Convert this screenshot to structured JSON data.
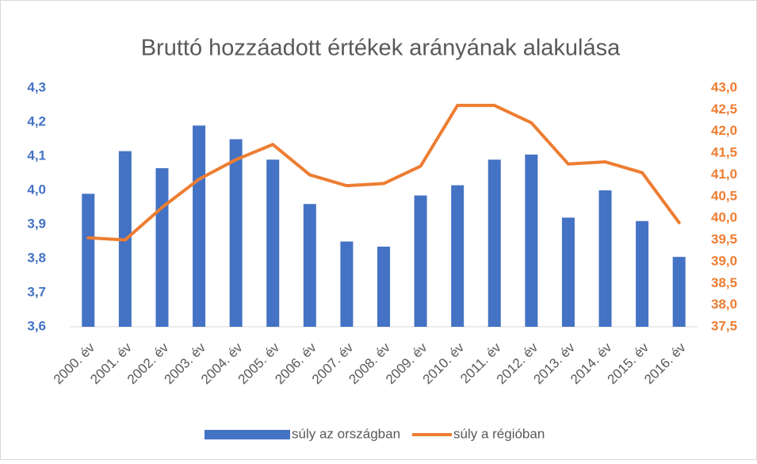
{
  "chart_data": {
    "type": "bar-line",
    "title": "Bruttó hozzáadott értékek arányának alakulása",
    "categories": [
      "2000. év",
      "2001. év",
      "2002. év",
      "2003. év",
      "2004. év",
      "2005. év",
      "2006. év",
      "2007. év",
      "2008. év",
      "2009. év",
      "2010. év",
      "2011. év",
      "2012. év",
      "2013. év",
      "2014. év",
      "2015. év",
      "2016. év"
    ],
    "series": [
      {
        "name": "súly az országban",
        "type": "bar",
        "color": "#4472c4",
        "axis": "y",
        "values": [
          3.99,
          4.115,
          4.065,
          4.19,
          4.15,
          4.09,
          3.96,
          3.85,
          3.835,
          3.985,
          4.015,
          4.09,
          4.105,
          3.92,
          4.0,
          3.91,
          3.805
        ]
      },
      {
        "name": "súly a régióban",
        "type": "line",
        "color": "#ed7d31",
        "axis": "y2",
        "values": [
          39.55,
          39.5,
          40.25,
          40.9,
          41.35,
          41.7,
          41.0,
          40.75,
          40.8,
          41.2,
          42.6,
          42.6,
          42.2,
          41.25,
          41.3,
          41.05,
          39.9
        ]
      }
    ],
    "ylim": [
      3.6,
      4.3
    ],
    "yticks": [
      {
        "value": 3.6,
        "label": "3,6"
      },
      {
        "value": 3.7,
        "label": "3,7"
      },
      {
        "value": 3.8,
        "label": "3,8"
      },
      {
        "value": 3.9,
        "label": "3,9"
      },
      {
        "value": 4.0,
        "label": "4,0"
      },
      {
        "value": 4.1,
        "label": "4,1"
      },
      {
        "value": 4.2,
        "label": "4,2"
      },
      {
        "value": 4.3,
        "label": "4,3"
      }
    ],
    "y2lim": [
      37.5,
      43.0
    ],
    "y2ticks": [
      {
        "value": 37.5,
        "label": "37,5"
      },
      {
        "value": 38.0,
        "label": "38,0"
      },
      {
        "value": 38.5,
        "label": "38,5"
      },
      {
        "value": 39.0,
        "label": "39,0"
      },
      {
        "value": 39.5,
        "label": "39,5"
      },
      {
        "value": 40.0,
        "label": "40,0"
      },
      {
        "value": 40.5,
        "label": "40,5"
      },
      {
        "value": 41.0,
        "label": "41,0"
      },
      {
        "value": 41.5,
        "label": "41,5"
      },
      {
        "value": 42.0,
        "label": "42,0"
      },
      {
        "value": 42.5,
        "label": "42,5"
      },
      {
        "value": 43.0,
        "label": "43,0"
      }
    ],
    "grid": false,
    "legend": "bottom"
  }
}
